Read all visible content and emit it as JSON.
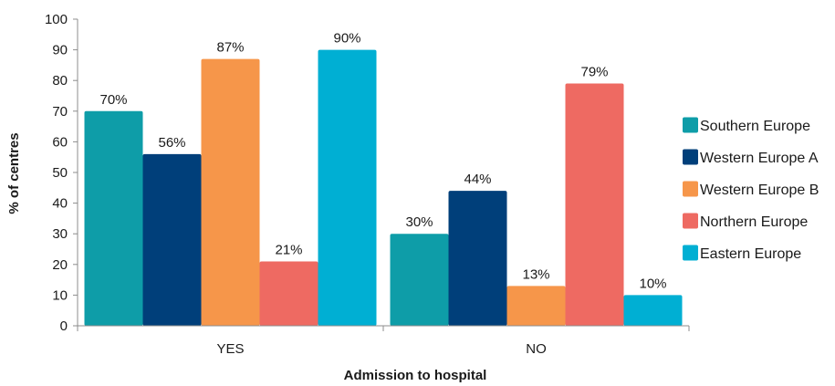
{
  "chart_data": {
    "type": "bar",
    "xlabel": "Admission to hospital",
    "ylabel": "% of centres",
    "ylim": [
      0,
      100
    ],
    "yticks": [
      0,
      10,
      20,
      30,
      40,
      50,
      60,
      70,
      80,
      90,
      100
    ],
    "categories": [
      "YES",
      "NO"
    ],
    "series": [
      {
        "name": "Southern Europe",
        "values": [
          70,
          30
        ],
        "labels": [
          "70%",
          "30%"
        ],
        "color": "#0E9DA8"
      },
      {
        "name": "Western Europe A",
        "values": [
          56,
          44
        ],
        "labels": [
          "56%",
          "44%"
        ],
        "color": "#003F7A"
      },
      {
        "name": "Western Europe B",
        "values": [
          87,
          13
        ],
        "labels": [
          "87%",
          "13%"
        ],
        "color": "#F6964A"
      },
      {
        "name": "Northern Europe",
        "values": [
          21,
          79
        ],
        "labels": [
          "21%",
          "79%"
        ],
        "color": "#EE6A62"
      },
      {
        "name": "Eastern Europe",
        "values": [
          90,
          10
        ],
        "labels": [
          "90%",
          "10%"
        ],
        "color": "#00AFD3"
      }
    ],
    "legend_position": "right",
    "grid": false
  }
}
